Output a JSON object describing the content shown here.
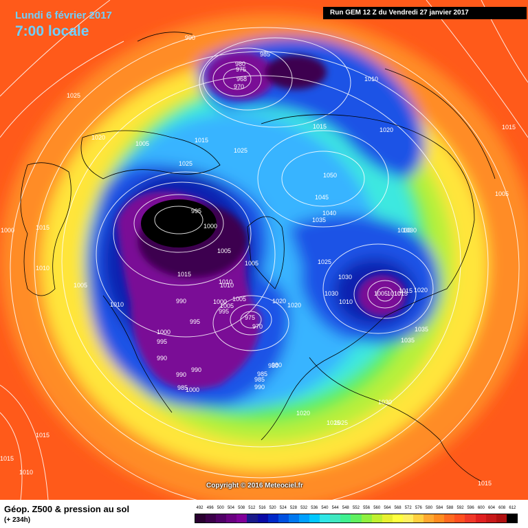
{
  "header": {
    "date": "Lundi 6 février 2017",
    "time": "7:00 locale",
    "run": "Run GEM 12 Z du Vendredi 27 janvier 2017"
  },
  "copyright": "Copyright © 2016 Meteociel.fr",
  "footer": {
    "title": "Géop. Z500 & pression au sol",
    "subtitle": "(+ 234h)"
  },
  "scale": {
    "labels": [
      "492",
      "496",
      "500",
      "504",
      "508",
      "512",
      "516",
      "520",
      "524",
      "528",
      "532",
      "536",
      "540",
      "544",
      "548",
      "552",
      "556",
      "560",
      "564",
      "568",
      "572",
      "576",
      "580",
      "584",
      "588",
      "592",
      "596",
      "600",
      "604",
      "608",
      "612"
    ],
    "colors": [
      "#2a0030",
      "#3c004a",
      "#500066",
      "#6a0080",
      "#800099",
      "#1a1a8a",
      "#0a0aa5",
      "#0028c8",
      "#0050e0",
      "#0078f0",
      "#00a0ff",
      "#00c8ff",
      "#30e6e6",
      "#40e8c0",
      "#40f090",
      "#60f060",
      "#90f040",
      "#c0f030",
      "#e8f030",
      "#ffff40",
      "#fff060",
      "#ffd040",
      "#ffa830",
      "#ff8c20",
      "#ff6a20",
      "#ff5020",
      "#f03828",
      "#e02020",
      "#c81818",
      "#b01010",
      "#000000"
    ]
  },
  "map": {
    "colors": {
      "outer": "#ff5a1a",
      "orange": "#ff8c28",
      "yellow": "#ffe53a",
      "light_green": "#b8f03a",
      "green": "#5fee5a",
      "cyan": "#3de8e0",
      "light_blue": "#39b4ff",
      "blue": "#1a52e6",
      "dark_blue": "#1020b0",
      "purple": "#7a0a96",
      "dark_purple": "#3c0050",
      "black": "#000000"
    },
    "pressure_labels": [
      "995",
      "990",
      "985",
      "980",
      "975",
      "968",
      "970",
      "1000",
      "1005",
      "1010",
      "1015",
      "1020",
      "1025",
      "1005",
      "1015",
      "1025",
      "1050",
      "1045",
      "1040",
      "1035",
      "1030",
      "1025",
      "1030",
      "1030",
      "1020",
      "1015",
      "1010",
      "1005",
      "1015",
      "1010",
      "1005",
      "1000",
      "1005",
      "995",
      "1000",
      "995",
      "990",
      "1005",
      "1010",
      "1020",
      "1020",
      "985",
      "980",
      "975",
      "970",
      "990",
      "995",
      "990",
      "985",
      "980",
      "990",
      "985",
      "990",
      "1015",
      "1020",
      "1025",
      "1030",
      "1035",
      "1035",
      "1010",
      "1015",
      "1020",
      "1025",
      "1030",
      "1025",
      "1010",
      "1000",
      "1005",
      "1015",
      "1005",
      "1000",
      "1010",
      "1015",
      "1015",
      "1010",
      "1015"
    ]
  }
}
